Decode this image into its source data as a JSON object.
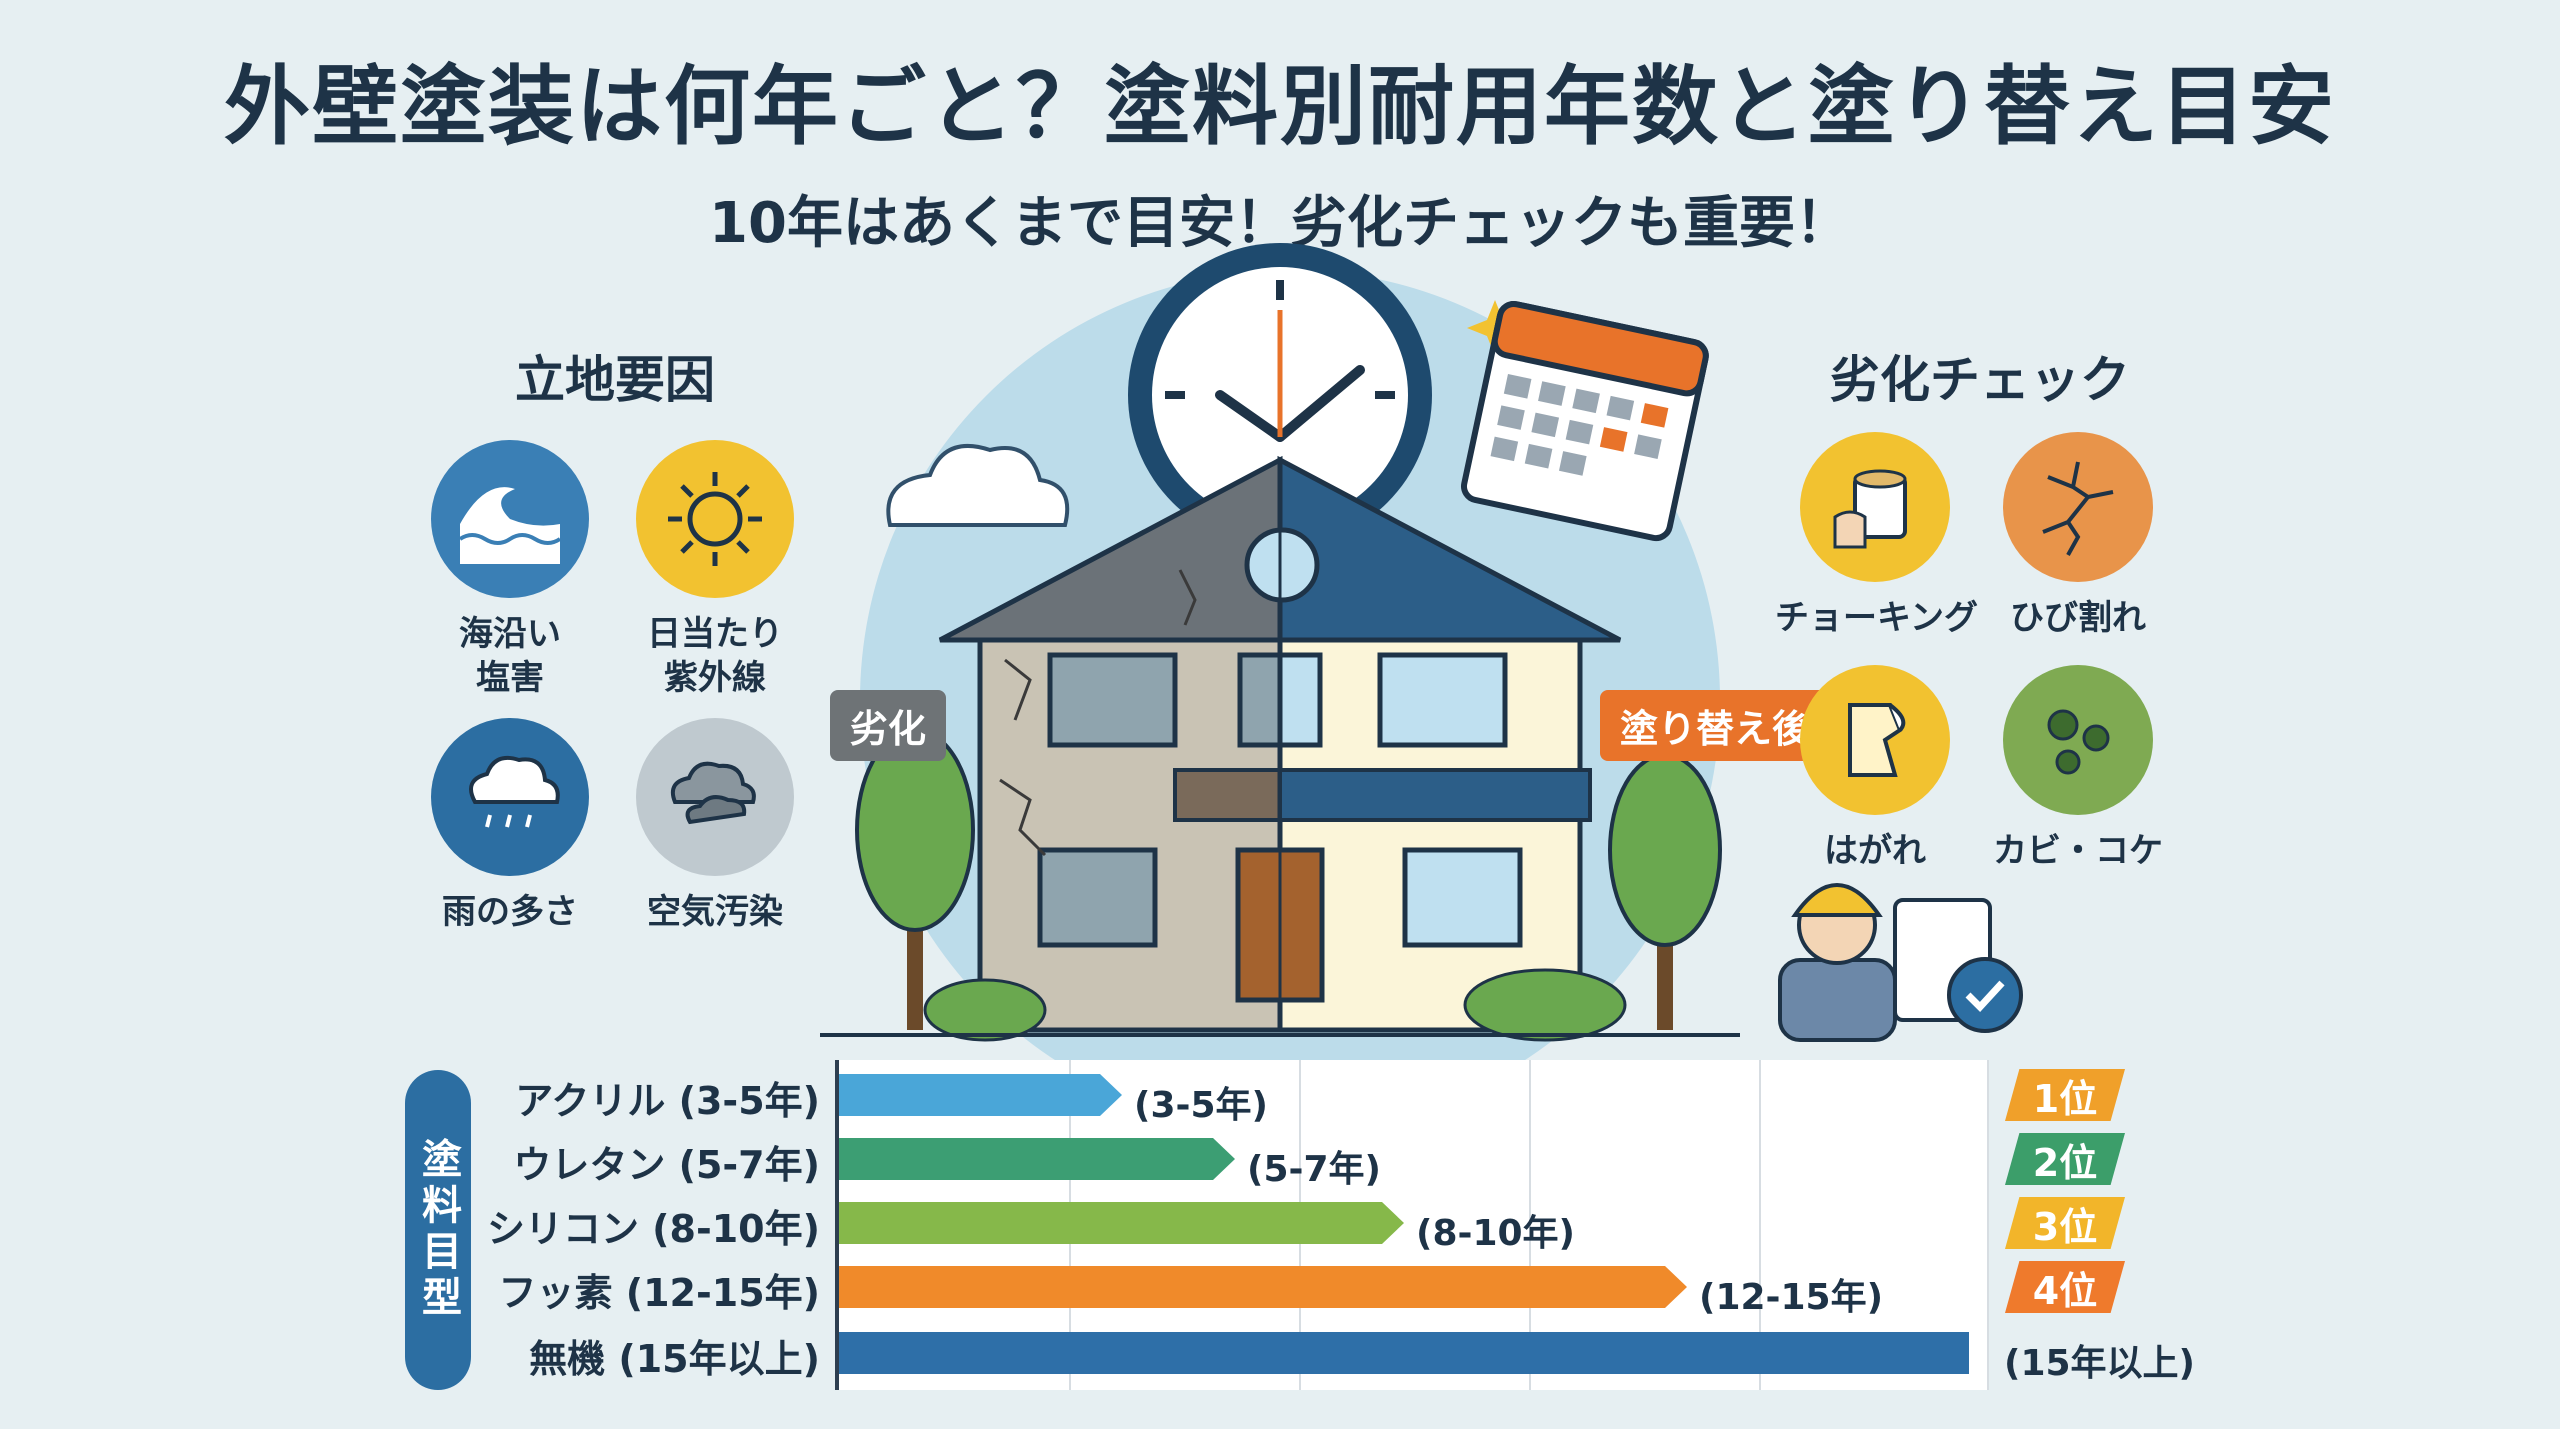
{
  "header": {
    "title": "外壁塗装は何年ごと？塗料別耐用年数と塗り替え目安",
    "subtitle": "10年はあくまで目安！劣化チェックも重要！"
  },
  "location_factors": {
    "heading": "立地要因",
    "items": [
      {
        "label_line1": "海沿い",
        "label_line2": "塩害",
        "icon": "wave-icon",
        "color": "#3a7fb5"
      },
      {
        "label_line1": "日当たり",
        "label_line2": "紫外線",
        "icon": "sun-icon",
        "color": "#f2c230"
      },
      {
        "label_line1": "雨の多さ",
        "label_line2": "",
        "icon": "rain-cloud-icon",
        "color": "#2c6ea2"
      },
      {
        "label_line1": "空気汚染",
        "label_line2": "",
        "icon": "smog-cloud-icon",
        "color": "#bfc9cf"
      }
    ]
  },
  "deterioration_check": {
    "heading": "劣化チェック",
    "items": [
      {
        "label": "チョーキング",
        "icon": "chalking-icon",
        "color": "#f2c230"
      },
      {
        "label": "ひび割れ",
        "icon": "crack-icon",
        "color": "#e8944a"
      },
      {
        "label": "はがれ",
        "icon": "peeling-icon",
        "color": "#f2c230"
      },
      {
        "label": "カビ・コケ",
        "icon": "mold-icon",
        "color": "#7faa52"
      }
    ]
  },
  "house": {
    "left_tag": "劣化",
    "right_tag": "塗り替え後"
  },
  "paint_chart": {
    "side_label": "塗料目型"
  },
  "chart_data": {
    "type": "bar",
    "orientation": "horizontal",
    "categories": [
      "アクリル (3-5年)",
      "ウレタン (5-7年)",
      "シリコン (8-10年)",
      "フッ素 (12-15年)",
      "無機 (15年以上)"
    ],
    "value_labels": [
      "(3-5年)",
      "(5-7年)",
      "(8-10年)",
      "(12-15年)",
      "(15年以上)"
    ],
    "values": [
      5,
      7,
      10,
      15,
      20
    ],
    "xlim": [
      0,
      20
    ],
    "grid": true,
    "colors": [
      "#4aa6d8",
      "#3c9e73",
      "#86b84a",
      "#f08a2a",
      "#2e6fa8"
    ],
    "ranks": [
      {
        "label": "1位",
        "color": "#f0a02a"
      },
      {
        "label": "2位",
        "color": "#3c9e6a"
      },
      {
        "label": "3位",
        "color": "#f2b52a"
      },
      {
        "label": "4位",
        "color": "#ef7a2c"
      }
    ]
  }
}
